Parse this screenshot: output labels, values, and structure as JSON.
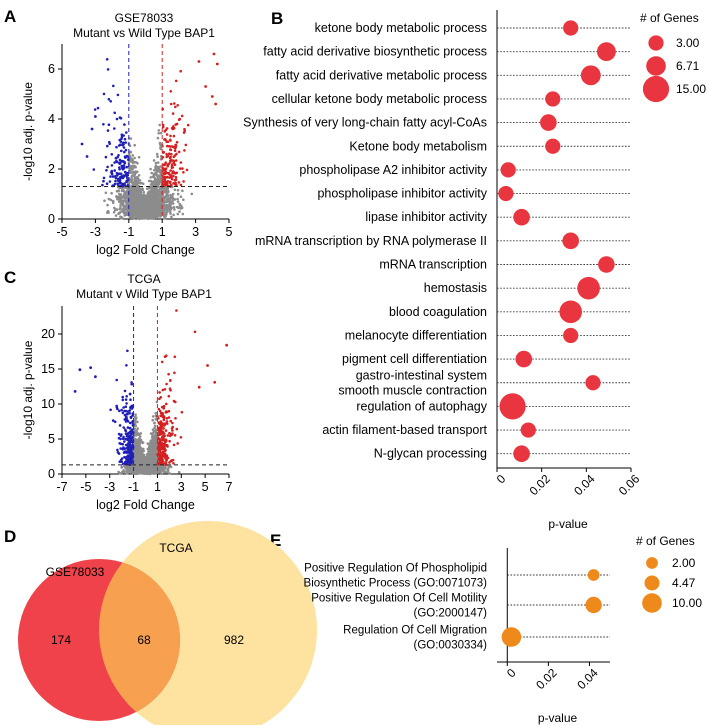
{
  "panel_labels": {
    "a": "A",
    "b": "B",
    "c": "C",
    "d": "D",
    "e": "E"
  },
  "chart_data": [
    {
      "id": "A",
      "type": "scatter",
      "title": "GSE78033",
      "subtitle": "Mutant vs Wild Type BAP1",
      "xlabel": "log2 Fold Change",
      "ylabel": "-log10 adj. p-value",
      "xlim": [
        -5,
        5
      ],
      "ylim": [
        0,
        7
      ],
      "xticks": [
        -5,
        -3,
        -1,
        1,
        3,
        5
      ],
      "yticks": [
        0,
        2,
        4,
        6
      ],
      "fc_cutoff": [
        -1,
        1
      ],
      "p_cutoff": 1.3,
      "colors": {
        "down": "#1f1fb8",
        "up": "#d42020",
        "ns": "#8c8c8c"
      },
      "outliers_up": [
        [
          4.1,
          6.6
        ],
        [
          4.3,
          6.2
        ],
        [
          4.0,
          4.9
        ],
        [
          4.2,
          4.6
        ],
        [
          3.6,
          5.3
        ],
        [
          3.2,
          6.3
        ]
      ],
      "outliers_down": [
        [
          -3.8,
          3.0
        ],
        [
          -3.5,
          2.5
        ],
        [
          -3.2,
          3.6
        ],
        [
          -3.0,
          4.1
        ]
      ]
    },
    {
      "id": "C",
      "type": "scatter",
      "title": "TCGA",
      "subtitle": "Mutant v Wild Type BAP1",
      "xlabel": "log2 Fold Change",
      "ylabel": "-log10 adj. p-value",
      "xlim": [
        -7,
        7
      ],
      "ylim": [
        0,
        24
      ],
      "xticks": [
        -7,
        -5,
        -3,
        -1,
        1,
        3,
        5,
        7
      ],
      "yticks": [
        0,
        5,
        10,
        15,
        20
      ],
      "fc_cutoff": [
        -1,
        1
      ],
      "p_cutoff": 1.3,
      "colors": {
        "down": "#1f1fb8",
        "up": "#d42020",
        "ns": "#8c8c8c"
      },
      "outliers_up": [
        [
          5.2,
          15.5
        ],
        [
          5.8,
          13.1
        ],
        [
          6.8,
          18.4
        ],
        [
          4.5,
          12.4
        ]
      ],
      "outliers_down": [
        [
          -5.5,
          14.9
        ],
        [
          -4.6,
          15.2
        ],
        [
          -5.9,
          11.8
        ],
        [
          -4.2,
          13.9
        ]
      ]
    },
    {
      "id": "B",
      "type": "scatter",
      "xlabel": "p-value",
      "xlim": [
        0,
        0.06
      ],
      "xticks": [
        0,
        0.02,
        0.04,
        0.06
      ],
      "xtick_labels": [
        "0",
        "0.02",
        "0.04",
        "0.06"
      ],
      "color": "#e8353f",
      "size_legend_title": "# of Genes",
      "size_legend": [
        3.0,
        6.71,
        15.0
      ],
      "size_legend_labels": [
        "3.00",
        "6.71",
        "15.00"
      ],
      "terms": [
        {
          "label": "ketone body metabolic process",
          "p": 0.033,
          "genes": 3
        },
        {
          "label": "fatty acid derivative biosynthetic process",
          "p": 0.049,
          "genes": 6
        },
        {
          "label": "fatty acid derivative metabolic process",
          "p": 0.042,
          "genes": 7
        },
        {
          "label": "cellular ketone body metabolic process",
          "p": 0.025,
          "genes": 3
        },
        {
          "label": "Synthesis of very long-chain fatty acyl-CoAs",
          "p": 0.023,
          "genes": 4
        },
        {
          "label": "Ketone body metabolism",
          "p": 0.025,
          "genes": 3
        },
        {
          "label": "phospholipase A2 inhibitor activity",
          "p": 0.005,
          "genes": 3
        },
        {
          "label": "phospholipase inhibitor activity",
          "p": 0.004,
          "genes": 3
        },
        {
          "label": "lipase inhibitor activity",
          "p": 0.011,
          "genes": 4
        },
        {
          "label": "mRNA transcription by RNA polymerase II",
          "p": 0.033,
          "genes": 4
        },
        {
          "label": "mRNA transcription",
          "p": 0.049,
          "genes": 4
        },
        {
          "label": "hemostasis",
          "p": 0.041,
          "genes": 10
        },
        {
          "label": "blood coagulation",
          "p": 0.033,
          "genes": 10
        },
        {
          "label": "melanocyte differentiation",
          "p": 0.033,
          "genes": 3
        },
        {
          "label": "pigment cell differentiation",
          "p": 0.012,
          "genes": 4
        },
        {
          "label": "gastro-intestinal system smooth muscle contraction",
          "p": 0.043,
          "genes": 3
        },
        {
          "label": "regulation of autophagy",
          "p": 0.007,
          "genes": 15
        },
        {
          "label": "actin filament-based transport",
          "p": 0.014,
          "genes": 3
        },
        {
          "label": "N-glycan processing",
          "p": 0.011,
          "genes": 4
        }
      ]
    },
    {
      "id": "D",
      "type": "venn",
      "sets": [
        {
          "name": "GSE78033",
          "only": 174,
          "color": "#f0424a"
        },
        {
          "name": "TCGA",
          "only": 982,
          "color": "#fde2a0"
        }
      ],
      "overlap": 68,
      "overlap_color": "#f6a050"
    },
    {
      "id": "E",
      "type": "scatter",
      "xlabel": "p-value",
      "xlim": [
        -0.005,
        0.05
      ],
      "xticks": [
        0,
        0.02,
        0.04
      ],
      "xtick_labels": [
        "0",
        "0.02",
        "0.04"
      ],
      "color": "#ee8a1c",
      "size_legend_title": "# of Genes",
      "size_legend": [
        2.0,
        4.47,
        10.0
      ],
      "size_legend_labels": [
        "2.00",
        "4.47",
        "10.00"
      ],
      "terms": [
        {
          "label": [
            "Positive Regulation Of Phospholipid",
            "Biosynthetic Process (GO:0071073)"
          ],
          "p": 0.042,
          "genes": 2
        },
        {
          "label": [
            "Positive Regulation Of Cell Motility",
            "(GO:2000147)"
          ],
          "p": 0.042,
          "genes": 6
        },
        {
          "label": [
            "Regulation Of Cell Migration",
            "(GO:0030334)"
          ],
          "p": 0.002,
          "genes": 10
        }
      ]
    }
  ]
}
